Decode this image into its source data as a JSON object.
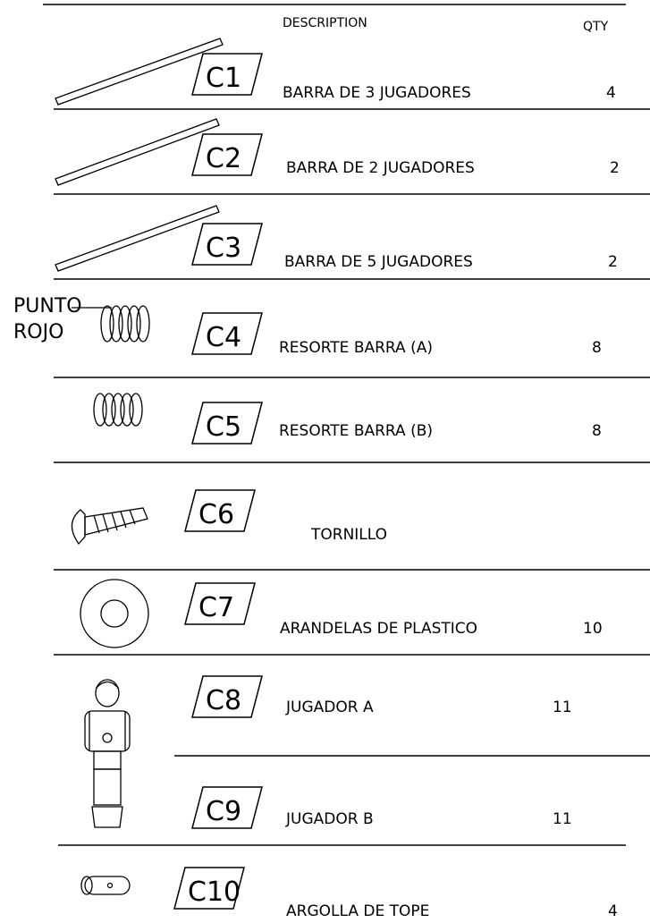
{
  "header": {
    "description": "DESCRIPTION",
    "qty": "QTY"
  },
  "annotation": {
    "line1": "PUNTO",
    "line2": "ROJO"
  },
  "parts": [
    {
      "code": "C1",
      "description": "BARRA DE 3 JUGADORES",
      "qty": 4
    },
    {
      "code": "C2",
      "description": "BARRA DE 2 JUGADORES",
      "qty": 2
    },
    {
      "code": "C3",
      "description": "BARRA DE 5 JUGADORES",
      "qty": 2
    },
    {
      "code": "C4",
      "description": "RESORTE BARRA (A)",
      "qty": 8
    },
    {
      "code": "C5",
      "description": "RESORTE BARRA (B)",
      "qty": 8
    },
    {
      "code": "C6",
      "description": "TORNILLO"
    },
    {
      "code": "C7",
      "description": "ARANDELAS DE PLASTICO",
      "qty": 10
    },
    {
      "code": "C8",
      "description": "JUGADOR A",
      "qty": 11
    },
    {
      "code": "C9",
      "description": "JUGADOR B",
      "qty": 11
    },
    {
      "code": "C10",
      "description": "ARGOLLA DE TOPE",
      "qty": 4
    }
  ]
}
